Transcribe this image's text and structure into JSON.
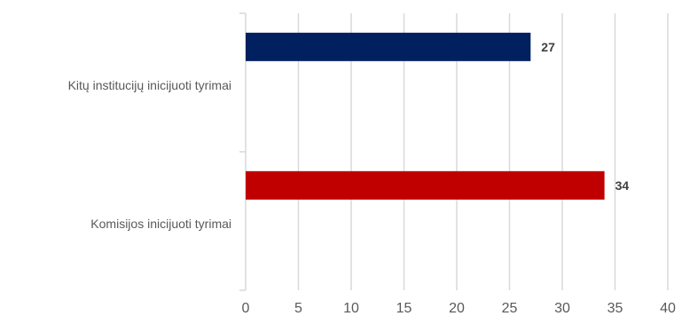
{
  "chart_data": {
    "type": "bar",
    "orientation": "horizontal",
    "title": "",
    "xlabel": "",
    "ylabel": "",
    "categories": [
      "Kitų institucijų inicijuoti tyrimai",
      "Komisijos inicijuoti tyrimai"
    ],
    "values": [
      27,
      34
    ],
    "value_labels": [
      "27",
      "34"
    ],
    "bar_colors": [
      "#002060",
      "#C00000"
    ],
    "xlim": [
      0,
      40
    ],
    "xticks": [
      0,
      5,
      10,
      15,
      20,
      25,
      30,
      35,
      40
    ],
    "xtick_labels": [
      "0",
      "5",
      "10",
      "15",
      "20",
      "25",
      "30",
      "35",
      "40"
    ],
    "grid": true,
    "legend": "none"
  }
}
